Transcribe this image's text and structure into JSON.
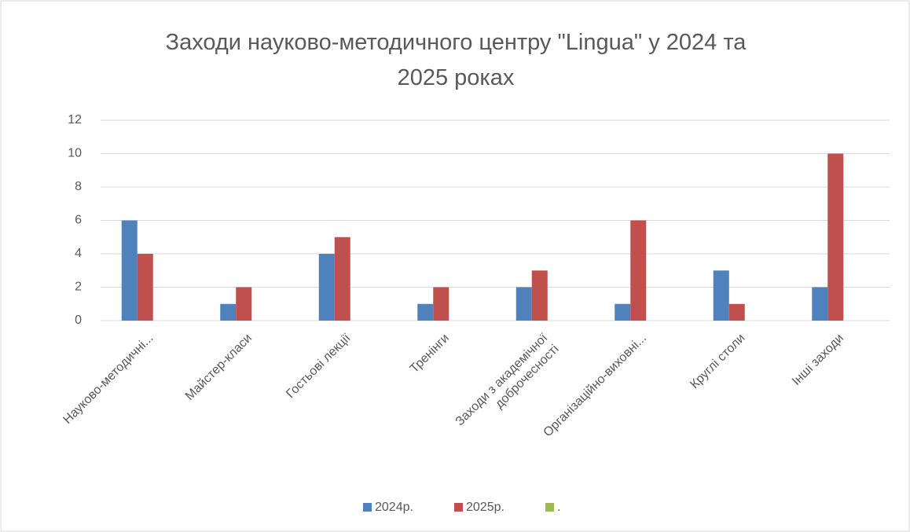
{
  "chart_data": {
    "type": "bar",
    "title": "Заходи науково-методичного центру \"Lingua\" у 2024 та 2025 роках",
    "categories": [
      "Науково-методичні...",
      "Майстер-класи",
      "Гостьові лекції",
      "Тренінги",
      "Заходи з академічної доброчесності",
      "Організаційно-виховні...",
      "Круглі столи",
      "Інші заходи"
    ],
    "series": [
      {
        "name": "2024р.",
        "color": "#4f81bd",
        "values": [
          6,
          1,
          4,
          1,
          2,
          1,
          3,
          2
        ]
      },
      {
        "name": "2025р.",
        "color": "#c0504d",
        "values": [
          4,
          2,
          5,
          2,
          3,
          6,
          1,
          10
        ]
      },
      {
        "name": ".",
        "color": "#9bbb59",
        "values": [
          null,
          null,
          null,
          null,
          null,
          null,
          null,
          null
        ]
      }
    ],
    "ylim": [
      0,
      12
    ],
    "yticks": [
      0,
      2,
      4,
      6,
      8,
      10,
      12
    ],
    "grid": true,
    "legend": "bottom"
  }
}
